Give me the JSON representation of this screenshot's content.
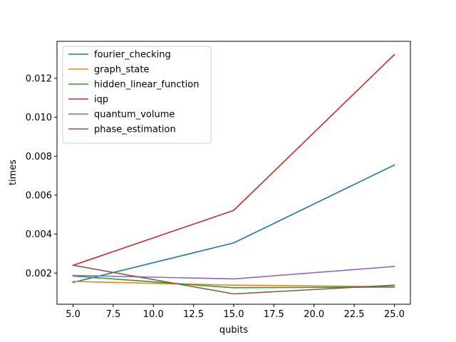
{
  "chart_data": {
    "type": "line",
    "title": "",
    "xlabel": "qubits",
    "ylabel": "times",
    "xlim": [
      4.0,
      26.0
    ],
    "ylim": [
      0.0004,
      0.0139
    ],
    "xticks": [
      5.0,
      7.5,
      10.0,
      12.5,
      15.0,
      17.5,
      20.0,
      22.5,
      25.0
    ],
    "xtick_labels": [
      "5.0",
      "7.5",
      "10.0",
      "12.5",
      "15.0",
      "17.5",
      "20.0",
      "22.5",
      "25.0"
    ],
    "yticks": [
      0.002,
      0.004,
      0.006,
      0.008,
      0.01,
      0.012
    ],
    "ytick_labels": [
      "0.002",
      "0.004",
      "0.006",
      "0.008",
      "0.010",
      "0.012"
    ],
    "grid": false,
    "legend_position": "top-left",
    "x": [
      5,
      15,
      25
    ],
    "series": [
      {
        "name": "fourier_checking",
        "color": "#1f77b4",
        "values": [
          0.00152,
          0.00355,
          0.00755
        ]
      },
      {
        "name": "graph_state",
        "color": "#ff7f0e",
        "values": [
          0.00157,
          0.00138,
          0.0013
        ]
      },
      {
        "name": "hidden_linear_function",
        "color": "#2ca02c",
        "values": [
          0.00185,
          0.00125,
          0.00128
        ]
      },
      {
        "name": "iqp",
        "color": "#d62728",
        "values": [
          0.0024,
          0.00522,
          0.01322
        ]
      },
      {
        "name": "quantum_volume",
        "color": "#9467bd",
        "values": [
          0.00188,
          0.0017,
          0.00234
        ]
      },
      {
        "name": "phase_estimation",
        "color": "#8c564b",
        "values": [
          0.0024,
          0.00093,
          0.00138
        ]
      }
    ]
  }
}
